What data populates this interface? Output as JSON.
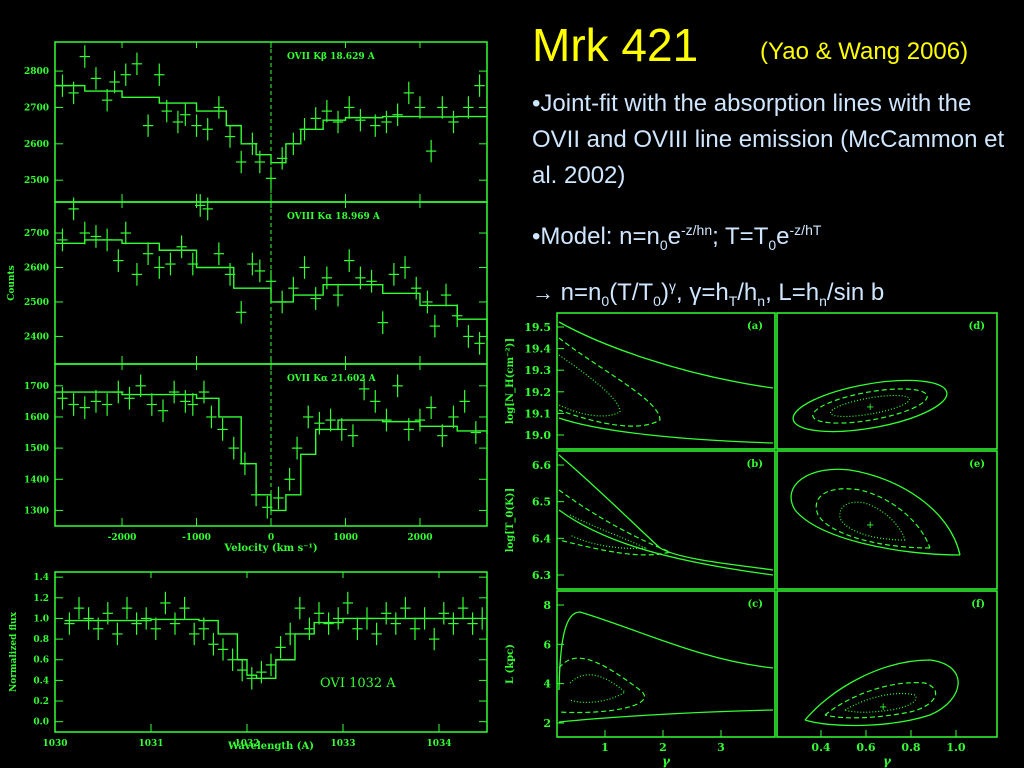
{
  "slide": {
    "title": "Mrk 421",
    "citation": "(Yao & Wang 2006)",
    "bullet1": "•Joint-fit with the absorption lines with the OVII and OVIII line emission (McCammon et al. 2002)",
    "bullet2": {
      "prefix": "•Model: n=n",
      "sub0": "0",
      "e1": "e",
      "sup1": "-z/hn",
      "mid": "; T=T",
      "sub1": "0",
      "e2": "e",
      "sup2": "-z/hT"
    },
    "bullet3": {
      "arrow": "→",
      "a": " n=n",
      "sub0": "0",
      "b": "(T/T",
      "sub1": "0",
      "c": ")",
      "supg": "γ",
      "d": ", ",
      "g": "γ",
      "e": "=h",
      "subT": "T",
      "f": "/h",
      "subn": "n",
      "h": ",  L=h",
      "subn2": "n",
      "i": "/sin b"
    }
  },
  "colors": {
    "plot": "#33ff33",
    "background": "#000000",
    "title": "#ffff00",
    "text": "#cfe6ff"
  },
  "chart_data": [
    {
      "type": "line",
      "label": "OVII Kβ 18.629 A",
      "ylabel": "",
      "xlim": [
        -2900,
        2900
      ],
      "ylim": [
        2440,
        2880
      ],
      "yticks": [
        2500,
        2600,
        2700,
        2800
      ],
      "xticks": [
        -2000,
        -1000,
        0,
        1000,
        2000
      ],
      "model": [
        [
          -2900,
          2760
        ],
        [
          -2500,
          2745
        ],
        [
          -2000,
          2728
        ],
        [
          -1500,
          2712
        ],
        [
          -1000,
          2690
        ],
        [
          -600,
          2650
        ],
        [
          -400,
          2600
        ],
        [
          -200,
          2570
        ],
        [
          0,
          2548
        ],
        [
          200,
          2600
        ],
        [
          400,
          2640
        ],
        [
          700,
          2665
        ],
        [
          1000,
          2672
        ],
        [
          1500,
          2675
        ],
        [
          2000,
          2674
        ],
        [
          2500,
          2675
        ],
        [
          2900,
          2676
        ]
      ],
      "points": [
        [
          -2800,
          2760
        ],
        [
          -2650,
          2740
        ],
        [
          -2500,
          2840
        ],
        [
          -2350,
          2780
        ],
        [
          -2200,
          2720
        ],
        [
          -2100,
          2770
        ],
        [
          -1950,
          2790
        ],
        [
          -1800,
          2820
        ],
        [
          -1650,
          2650
        ],
        [
          -1500,
          2790
        ],
        [
          -1400,
          2690
        ],
        [
          -1250,
          2660
        ],
        [
          -1150,
          2680
        ],
        [
          -1000,
          2650
        ],
        [
          -850,
          2640
        ],
        [
          -700,
          2700
        ],
        [
          -550,
          2620
        ],
        [
          -400,
          2550
        ],
        [
          -250,
          2600
        ],
        [
          -150,
          2550
        ],
        [
          0,
          2505
        ],
        [
          150,
          2560
        ],
        [
          300,
          2600
        ],
        [
          450,
          2640
        ],
        [
          600,
          2670
        ],
        [
          750,
          2690
        ],
        [
          900,
          2660
        ],
        [
          1050,
          2700
        ],
        [
          1200,
          2665
        ],
        [
          1400,
          2650
        ],
        [
          1550,
          2660
        ],
        [
          1700,
          2680
        ],
        [
          1850,
          2740
        ],
        [
          2000,
          2700
        ],
        [
          2150,
          2580
        ],
        [
          2300,
          2700
        ],
        [
          2450,
          2660
        ],
        [
          2650,
          2700
        ],
        [
          2800,
          2760
        ]
      ]
    },
    {
      "type": "line",
      "label": "OVIII Kα 18.969 A",
      "ylabel": "Counts",
      "xlim": [
        -2900,
        2900
      ],
      "ylim": [
        2320,
        2790
      ],
      "yticks": [
        2400,
        2500,
        2600,
        2700
      ],
      "xticks": [
        -2000,
        -1000,
        0,
        1000,
        2000
      ],
      "model": [
        [
          -2900,
          2670
        ],
        [
          -2500,
          2680
        ],
        [
          -2000,
          2670
        ],
        [
          -1500,
          2650
        ],
        [
          -1000,
          2600
        ],
        [
          -500,
          2540
        ],
        [
          0,
          2500
        ],
        [
          300,
          2520
        ],
        [
          700,
          2550
        ],
        [
          1000,
          2550
        ],
        [
          1500,
          2525
        ],
        [
          2000,
          2490
        ],
        [
          2500,
          2450
        ],
        [
          2900,
          2390
        ]
      ],
      "points": [
        [
          -2800,
          2680
        ],
        [
          -2650,
          2770
        ],
        [
          -2500,
          2700
        ],
        [
          -2350,
          2690
        ],
        [
          -2200,
          2680
        ],
        [
          -2050,
          2620
        ],
        [
          -1950,
          2700
        ],
        [
          -1800,
          2580
        ],
        [
          -1650,
          2640
        ],
        [
          -1500,
          2600
        ],
        [
          -1350,
          2610
        ],
        [
          -1200,
          2660
        ],
        [
          -1050,
          2610
        ],
        [
          -950,
          2780
        ],
        [
          -850,
          2770
        ],
        [
          -700,
          2640
        ],
        [
          -550,
          2580
        ],
        [
          -400,
          2470
        ],
        [
          -250,
          2610
        ],
        [
          -150,
          2590
        ],
        [
          0,
          2560
        ],
        [
          150,
          2500
        ],
        [
          300,
          2540
        ],
        [
          450,
          2600
        ],
        [
          600,
          2510
        ],
        [
          750,
          2570
        ],
        [
          900,
          2520
        ],
        [
          1050,
          2620
        ],
        [
          1200,
          2570
        ],
        [
          1350,
          2560
        ],
        [
          1500,
          2440
        ],
        [
          1650,
          2580
        ],
        [
          1800,
          2600
        ],
        [
          1950,
          2540
        ],
        [
          2100,
          2500
        ],
        [
          2200,
          2430
        ],
        [
          2350,
          2520
        ],
        [
          2500,
          2460
        ],
        [
          2650,
          2400
        ],
        [
          2800,
          2380
        ]
      ]
    },
    {
      "type": "line",
      "label": "OVII Kα 21.602 A",
      "ylabel": "",
      "xlabel": "Velocity (km s⁻¹)",
      "xlim": [
        -2900,
        2900
      ],
      "ylim": [
        1250,
        1770
      ],
      "yticks": [
        1300,
        1400,
        1500,
        1600,
        1700
      ],
      "xticks": [
        -2000,
        -1000,
        0,
        1000,
        2000
      ],
      "model": [
        [
          -2900,
          1680
        ],
        [
          -2000,
          1672
        ],
        [
          -1000,
          1660
        ],
        [
          -700,
          1600
        ],
        [
          -400,
          1450
        ],
        [
          -200,
          1350
        ],
        [
          0,
          1300
        ],
        [
          200,
          1350
        ],
        [
          400,
          1480
        ],
        [
          600,
          1560
        ],
        [
          900,
          1590
        ],
        [
          1500,
          1585
        ],
        [
          2000,
          1570
        ],
        [
          2500,
          1555
        ],
        [
          2900,
          1545
        ]
      ],
      "points": [
        [
          -2800,
          1660
        ],
        [
          -2650,
          1640
        ],
        [
          -2500,
          1630
        ],
        [
          -2350,
          1650
        ],
        [
          -2200,
          1640
        ],
        [
          -2050,
          1680
        ],
        [
          -1900,
          1660
        ],
        [
          -1750,
          1700
        ],
        [
          -1600,
          1640
        ],
        [
          -1450,
          1620
        ],
        [
          -1300,
          1680
        ],
        [
          -1150,
          1650
        ],
        [
          -1050,
          1640
        ],
        [
          -900,
          1680
        ],
        [
          -800,
          1600
        ],
        [
          -650,
          1560
        ],
        [
          -500,
          1500
        ],
        [
          -350,
          1450
        ],
        [
          -200,
          1350
        ],
        [
          -50,
          1310
        ],
        [
          100,
          1340
        ],
        [
          250,
          1400
        ],
        [
          350,
          1500
        ],
        [
          500,
          1600
        ],
        [
          650,
          1580
        ],
        [
          800,
          1590
        ],
        [
          950,
          1560
        ],
        [
          1100,
          1540
        ],
        [
          1250,
          1690
        ],
        [
          1400,
          1650
        ],
        [
          1550,
          1590
        ],
        [
          1700,
          1700
        ],
        [
          1850,
          1560
        ],
        [
          2000,
          1590
        ],
        [
          2150,
          1630
        ],
        [
          2300,
          1540
        ],
        [
          2450,
          1600
        ],
        [
          2600,
          1650
        ],
        [
          2750,
          1550
        ]
      ]
    },
    {
      "type": "line",
      "label": "OVI 1032 A",
      "ylabel": "Normalized flux",
      "xlabel": "Wavelength (A)",
      "xlim": [
        1030,
        1034.5
      ],
      "ylim": [
        -0.1,
        1.45
      ],
      "yticks": [
        0.0,
        0.2,
        0.4,
        0.6,
        0.8,
        1.0,
        1.2,
        1.4
      ],
      "xticks": [
        1030,
        1031,
        1032,
        1033,
        1034
      ],
      "model": [
        [
          1030.1,
          0.98
        ],
        [
          1031,
          0.99
        ],
        [
          1031.5,
          0.98
        ],
        [
          1031.7,
          0.85
        ],
        [
          1031.9,
          0.6
        ],
        [
          1032.0,
          0.45
        ],
        [
          1032.1,
          0.42
        ],
        [
          1032.3,
          0.6
        ],
        [
          1032.5,
          0.85
        ],
        [
          1032.7,
          0.96
        ],
        [
          1033,
          1.0
        ],
        [
          1034,
          1.0
        ],
        [
          1034.4,
          1.0
        ]
      ],
      "points": [
        [
          1030.15,
          0.95
        ],
        [
          1030.25,
          1.1
        ],
        [
          1030.35,
          1.0
        ],
        [
          1030.45,
          0.9
        ],
        [
          1030.55,
          1.05
        ],
        [
          1030.65,
          0.85
        ],
        [
          1030.75,
          1.1
        ],
        [
          1030.85,
          0.95
        ],
        [
          1030.95,
          1.0
        ],
        [
          1031.05,
          0.9
        ],
        [
          1031.15,
          1.15
        ],
        [
          1031.25,
          0.95
        ],
        [
          1031.35,
          1.1
        ],
        [
          1031.45,
          0.85
        ],
        [
          1031.55,
          0.9
        ],
        [
          1031.65,
          0.75
        ],
        [
          1031.75,
          0.7
        ],
        [
          1031.85,
          0.6
        ],
        [
          1031.95,
          0.5
        ],
        [
          1032.05,
          0.42
        ],
        [
          1032.15,
          0.48
        ],
        [
          1032.25,
          0.55
        ],
        [
          1032.35,
          0.72
        ],
        [
          1032.45,
          0.85
        ],
        [
          1032.55,
          1.1
        ],
        [
          1032.65,
          0.9
        ],
        [
          1032.75,
          1.05
        ],
        [
          1032.85,
          0.95
        ],
        [
          1032.95,
          1.0
        ],
        [
          1033.05,
          1.15
        ],
        [
          1033.15,
          0.9
        ],
        [
          1033.25,
          1.0
        ],
        [
          1033.35,
          0.85
        ],
        [
          1033.45,
          1.05
        ],
        [
          1033.55,
          0.95
        ],
        [
          1033.65,
          1.1
        ],
        [
          1033.75,
          0.9
        ],
        [
          1033.85,
          1.0
        ],
        [
          1033.95,
          0.8
        ],
        [
          1034.05,
          1.05
        ],
        [
          1034.15,
          0.95
        ],
        [
          1034.25,
          1.1
        ],
        [
          1034.35,
          0.95
        ],
        [
          1034.45,
          1.0
        ]
      ]
    },
    {
      "type": "contour",
      "panels": [
        {
          "label": "(a)",
          "ylabel": "log[N_H(cm⁻²)]",
          "yticks": [
            "19.5",
            "19.4",
            "19.3",
            "19.2",
            "19.1",
            "19.0"
          ]
        },
        {
          "label": "(b)",
          "ylabel": "log[T_0(K)]",
          "yticks": [
            "6.6",
            "6.5",
            "6.4",
            "6.3"
          ]
        },
        {
          "label": "(c)",
          "ylabel": "L (kpc)",
          "yticks": [
            "8",
            "6",
            "4",
            "2"
          ],
          "xlabel": "γ",
          "xticks": [
            "1",
            "2",
            "3"
          ]
        },
        {
          "label": "(d)"
        },
        {
          "label": "(e)"
        },
        {
          "label": "(f)",
          "xlabel": "γ",
          "xticks": [
            "0.4",
            "0.6",
            "0.8",
            "1.0"
          ]
        }
      ]
    }
  ]
}
